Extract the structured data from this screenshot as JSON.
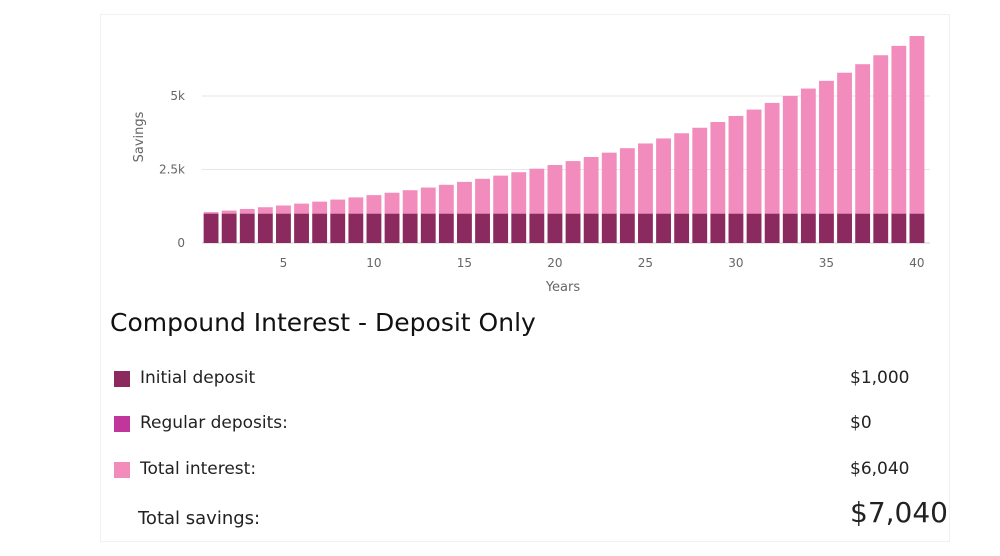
{
  "chart_data": {
    "type": "bar",
    "stacked": true,
    "xlabel": "Years",
    "ylabel": "Savings",
    "x": [
      1,
      2,
      3,
      4,
      5,
      6,
      7,
      8,
      9,
      10,
      11,
      12,
      13,
      14,
      15,
      16,
      17,
      18,
      19,
      20,
      21,
      22,
      23,
      24,
      25,
      26,
      27,
      28,
      29,
      30,
      31,
      32,
      33,
      34,
      35,
      36,
      37,
      38,
      39,
      40
    ],
    "xticks": [
      5,
      10,
      15,
      20,
      25,
      30,
      35,
      40
    ],
    "yticks": [
      0,
      2500,
      5000
    ],
    "ytick_labels": [
      "0",
      "2.5k",
      "5k"
    ],
    "ylim": [
      0,
      7000
    ],
    "grid": true,
    "series": [
      {
        "name": "Initial deposit",
        "color": "#8b2a5e",
        "values": [
          1000,
          1000,
          1000,
          1000,
          1000,
          1000,
          1000,
          1000,
          1000,
          1000,
          1000,
          1000,
          1000,
          1000,
          1000,
          1000,
          1000,
          1000,
          1000,
          1000,
          1000,
          1000,
          1000,
          1000,
          1000,
          1000,
          1000,
          1000,
          1000,
          1000,
          1000,
          1000,
          1000,
          1000,
          1000,
          1000,
          1000,
          1000,
          1000,
          1000
        ]
      },
      {
        "name": "Total interest",
        "color": "#f28cbd",
        "values": [
          50,
          103,
          158,
          216,
          276,
          340,
          407,
          477,
          551,
          629,
          710,
          796,
          886,
          980,
          1079,
          1183,
          1292,
          1407,
          1527,
          1653,
          1786,
          1925,
          2072,
          2225,
          2386,
          2556,
          2733,
          2920,
          3116,
          3322,
          3538,
          3765,
          4003,
          4253,
          4516,
          4792,
          5082,
          5386,
          5705,
          6040
        ]
      }
    ]
  },
  "summary": {
    "title": "Compound Interest - Deposit Only",
    "legend": [
      {
        "label": "Initial deposit",
        "value": "$1,000",
        "color": "#8b2a5e"
      },
      {
        "label": "Regular deposits:",
        "value": "$0",
        "color": "#c0369a"
      },
      {
        "label": "Total interest:",
        "value": "$6,040",
        "color": "#f28cbd"
      }
    ],
    "total_label": "Total savings:",
    "total_value": "$7,040"
  }
}
